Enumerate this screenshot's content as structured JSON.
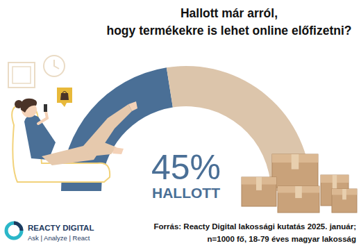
{
  "chart_data": {
    "type": "gauge",
    "title": [
      "Hallott már arról,",
      "hogy termékekre is lehet online előfizetni?"
    ],
    "categories": [
      "HALLOTT",
      null
    ],
    "values": [
      45,
      55
    ],
    "value_labels": [
      "45%",
      null
    ],
    "colors": [
      "#4a6f96",
      "#dcc5ab"
    ],
    "data_labels": true
  },
  "source": [
    "Forrás: Reacty Digital lakossági kutatás 2025. január;",
    "n=1000 fő, 18-79 éves magyar lakosság"
  ],
  "brand": [
    "REACTY DIGITAL",
    "Ask | Analyze | React"
  ]
}
